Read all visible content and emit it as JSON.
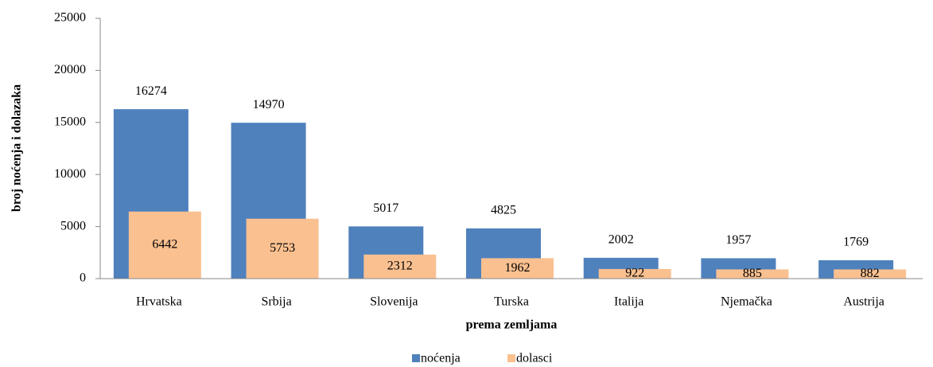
{
  "chart_data": {
    "type": "bar",
    "categories": [
      "Hrvatska",
      "Srbija",
      "Slovenija",
      "Turska",
      "Italija",
      "Njemačka",
      "Austrija"
    ],
    "series": [
      {
        "name": "noćenja",
        "color": "#4f81bd",
        "values": [
          16274,
          14970,
          5017,
          4825,
          2002,
          1957,
          1769
        ]
      },
      {
        "name": "dolasci",
        "color": "#fac090",
        "values": [
          6442,
          5753,
          2312,
          1962,
          922,
          885,
          882
        ]
      }
    ],
    "x_label": "prema zemljama",
    "y_label": "broj noćenja i dolazaka",
    "ylim": [
      0,
      25000
    ],
    "yticks": [
      0,
      5000,
      10000,
      15000,
      20000,
      25000
    ],
    "grid": false,
    "legend": "bottom"
  }
}
